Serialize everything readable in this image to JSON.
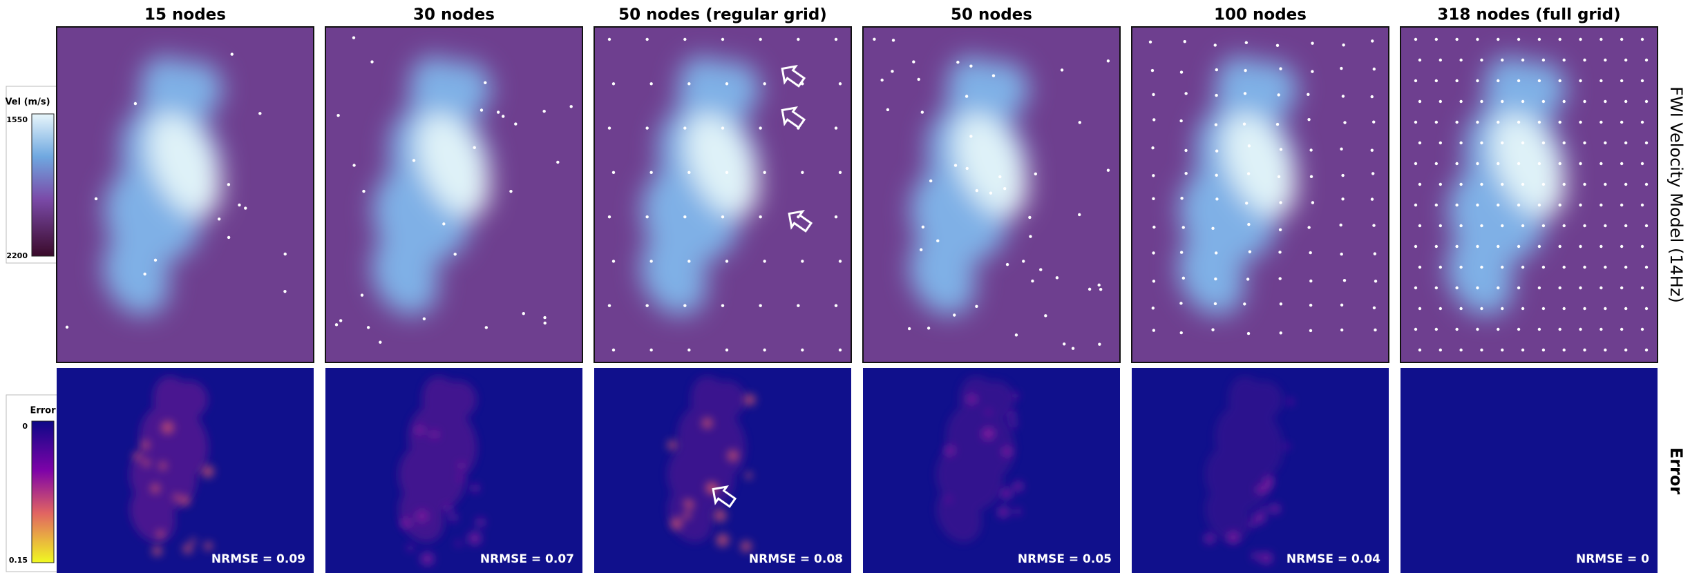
{
  "columns": [
    {
      "title": "15 nodes",
      "nrmse": "NRMSE = 0.09"
    },
    {
      "title": "30 nodes",
      "nrmse": "NRMSE = 0.07"
    },
    {
      "title": "50 nodes (regular grid)",
      "nrmse": "NRMSE = 0.08"
    },
    {
      "title": "50 nodes",
      "nrmse": "NRMSE = 0.05"
    },
    {
      "title": "100 nodes",
      "nrmse": "NRMSE = 0.04"
    },
    {
      "title": "318 nodes (full grid)",
      "nrmse": "NRMSE = 0"
    }
  ],
  "colorbars": {
    "velocity": {
      "label": "Vel (m/s)",
      "top": "1550",
      "bottom": "2200"
    },
    "error": {
      "label": "Error",
      "top": "0",
      "bottom": "0.15"
    }
  },
  "row_labels": [
    "FWI Velocity Model (14Hz)",
    "Error"
  ]
}
